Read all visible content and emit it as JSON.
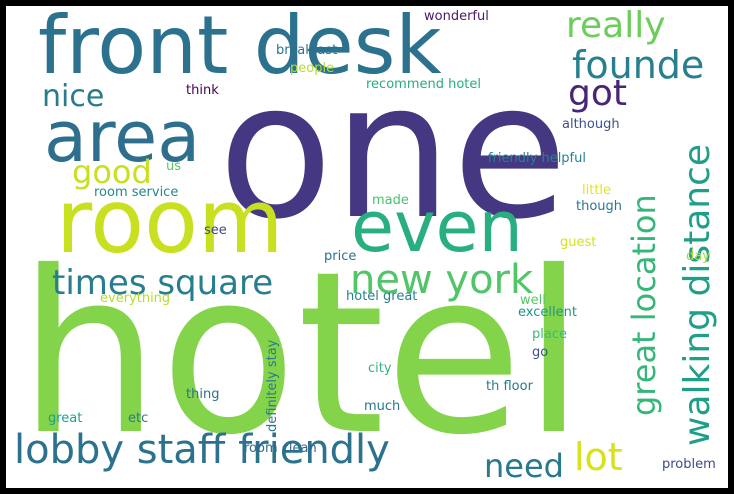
{
  "words": [
    {
      "text": "hotel",
      "color": "#84d44b"
    },
    {
      "text": "one",
      "color": "#453781"
    },
    {
      "text": "front desk",
      "color": "#2c728e"
    },
    {
      "text": "room",
      "color": "#c8e020"
    },
    {
      "text": "area",
      "color": "#2e6f8e"
    },
    {
      "text": "even",
      "color": "#29af7f"
    },
    {
      "text": "walking distance",
      "color": "#1f9e89"
    },
    {
      "text": "great location",
      "color": "#35b779"
    },
    {
      "text": "lobby staff friendly",
      "color": "#2c728e"
    },
    {
      "text": "times square",
      "color": "#287d8e"
    },
    {
      "text": "new york",
      "color": "#52c569"
    },
    {
      "text": "really",
      "color": "#6ccd5a"
    },
    {
      "text": "founde",
      "color": "#27808e"
    },
    {
      "text": "got",
      "color": "#482576"
    },
    {
      "text": "nice",
      "color": "#287c8e"
    },
    {
      "text": "good",
      "color": "#c8e020"
    },
    {
      "text": "need",
      "color": "#2a788e"
    },
    {
      "text": "lot",
      "color": "#d8e219"
    },
    {
      "text": "wonderful",
      "color": "#48186a"
    },
    {
      "text": "breakfast",
      "color": "#2c728e"
    },
    {
      "text": "people",
      "color": "#b5de2b"
    },
    {
      "text": "recommend hotel",
      "color": "#25ac82"
    },
    {
      "text": "think",
      "color": "#440154"
    },
    {
      "text": "although",
      "color": "#3b528b"
    },
    {
      "text": "friendly helpful",
      "color": "#26828e"
    },
    {
      "text": "us",
      "color": "#56c667"
    },
    {
      "text": "room service",
      "color": "#23898e"
    },
    {
      "text": "little",
      "color": "#e5e419"
    },
    {
      "text": "made",
      "color": "#4ac16d"
    },
    {
      "text": "though",
      "color": "#2a788e"
    },
    {
      "text": "see",
      "color": "#3e4989"
    },
    {
      "text": "guest",
      "color": "#d8e219"
    },
    {
      "text": "price",
      "color": "#2d708e"
    },
    {
      "text": "day",
      "color": "#a8db34"
    },
    {
      "text": "everything",
      "color": "#b5de2b"
    },
    {
      "text": "hotel great",
      "color": "#27808e"
    },
    {
      "text": "well",
      "color": "#56c667"
    },
    {
      "text": "excellent",
      "color": "#1f958b"
    },
    {
      "text": "definitely stay",
      "color": "#2a788e"
    },
    {
      "text": "place",
      "color": "#3bbb75"
    },
    {
      "text": "go",
      "color": "#3b528b"
    },
    {
      "text": "city",
      "color": "#31b57b"
    },
    {
      "text": "thing",
      "color": "#2d708e"
    },
    {
      "text": "th floor",
      "color": "#287c8e"
    },
    {
      "text": "much",
      "color": "#2a768e"
    },
    {
      "text": "great",
      "color": "#1fa187"
    },
    {
      "text": "etc",
      "color": "#2a788e"
    },
    {
      "text": "room clean",
      "color": "#31688e"
    },
    {
      "text": "problem",
      "color": "#3e4989"
    }
  ]
}
